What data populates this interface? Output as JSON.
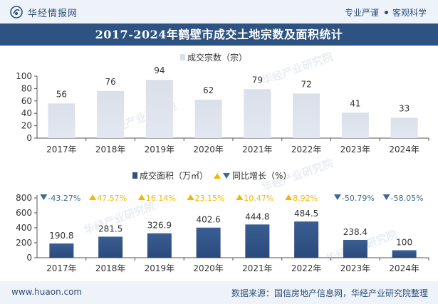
{
  "header": {
    "brand": "华经情报网",
    "tags": [
      "专业严谨",
      "客观科学"
    ]
  },
  "title": "2017-2024年鹤壁市成交土地宗数及面积统计",
  "watermark": "华经产业研究院",
  "footer": {
    "url": "www.huaon.com",
    "source": "数据来源：国信房地产信息网，华经产业研究院整理"
  },
  "colors": {
    "header_bg": "#eef3f9",
    "title_bg": "#2e5383",
    "bar_top": "#dde1ec",
    "bar_bottom": "#2f5186",
    "up": "#f5b800",
    "down": "#3b6b93"
  },
  "chart_data": [
    {
      "type": "bar",
      "categories": [
        "2017年",
        "2018年",
        "2019年",
        "2020年",
        "2021年",
        "2022年",
        "2023年",
        "2024年"
      ],
      "series": [
        {
          "name": "成交宗数（宗）",
          "values": [
            56,
            76,
            94,
            62,
            79,
            72,
            41,
            33
          ]
        }
      ],
      "ylim": [
        0,
        100
      ],
      "yticks": [
        0,
        20,
        40,
        60,
        80,
        100
      ],
      "legend": "top-center",
      "grid": false
    },
    {
      "type": "bar",
      "categories": [
        "2017年",
        "2018年",
        "2019年",
        "2020年",
        "2021年",
        "2022年",
        "2023年",
        "2024年"
      ],
      "series": [
        {
          "name": "成交面积（万㎡）",
          "values": [
            190.8,
            281.5,
            326.9,
            402.6,
            444.8,
            484.5,
            238.4,
            100
          ]
        },
        {
          "name": "同比增长（%）",
          "values": [
            -43.27,
            47.57,
            16.14,
            23.15,
            10.47,
            8.92,
            -50.79,
            -58.05
          ]
        }
      ],
      "growth_labels": [
        "-43.27%",
        "47.57%",
        "16.14%",
        "23.15%",
        "10.47%",
        "8.92%",
        "-50.79%",
        "-58.05%"
      ],
      "ylim": [
        0,
        800
      ],
      "yticks": [
        0,
        200,
        400,
        600,
        800
      ],
      "legend": "top-center",
      "grid": false
    }
  ]
}
